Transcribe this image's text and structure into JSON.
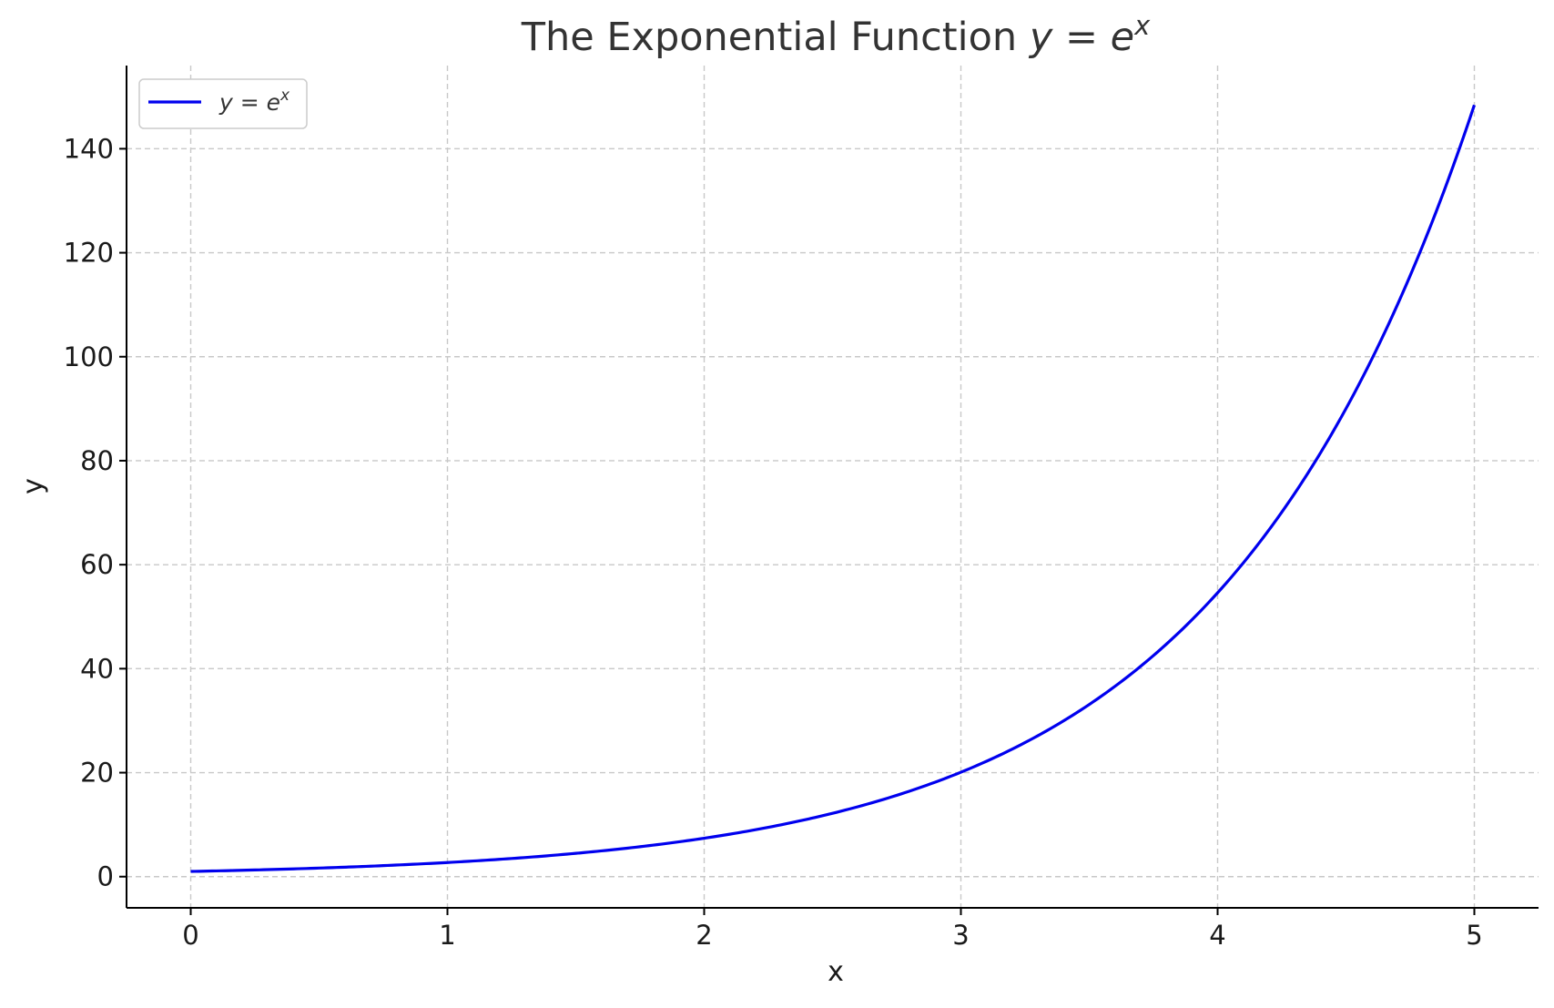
{
  "chart_data": {
    "type": "line",
    "title_prefix": "The Exponential Function ",
    "title_math_base": "y = e",
    "title_math_exp": "x",
    "xlabel": "x",
    "ylabel": "y",
    "xlim": [
      -0.25,
      5.25
    ],
    "ylim": [
      -6,
      156
    ],
    "x_ticks": [
      0,
      1,
      2,
      3,
      4,
      5
    ],
    "y_ticks": [
      0,
      20,
      40,
      60,
      80,
      100,
      120,
      140
    ],
    "grid": true,
    "legend_position": "top-left",
    "series": [
      {
        "name_base": "y = e",
        "name_exp": "x",
        "color": "#0000ee",
        "function": "exp",
        "x_start": 0,
        "x_end": 5,
        "sample_x": [
          0,
          0.5,
          1,
          1.5,
          2,
          2.5,
          3,
          3.5,
          4,
          4.5,
          5
        ],
        "sample_y": [
          1.0,
          1.65,
          2.72,
          4.48,
          7.39,
          12.18,
          20.09,
          33.12,
          54.6,
          90.02,
          148.41
        ]
      }
    ]
  }
}
